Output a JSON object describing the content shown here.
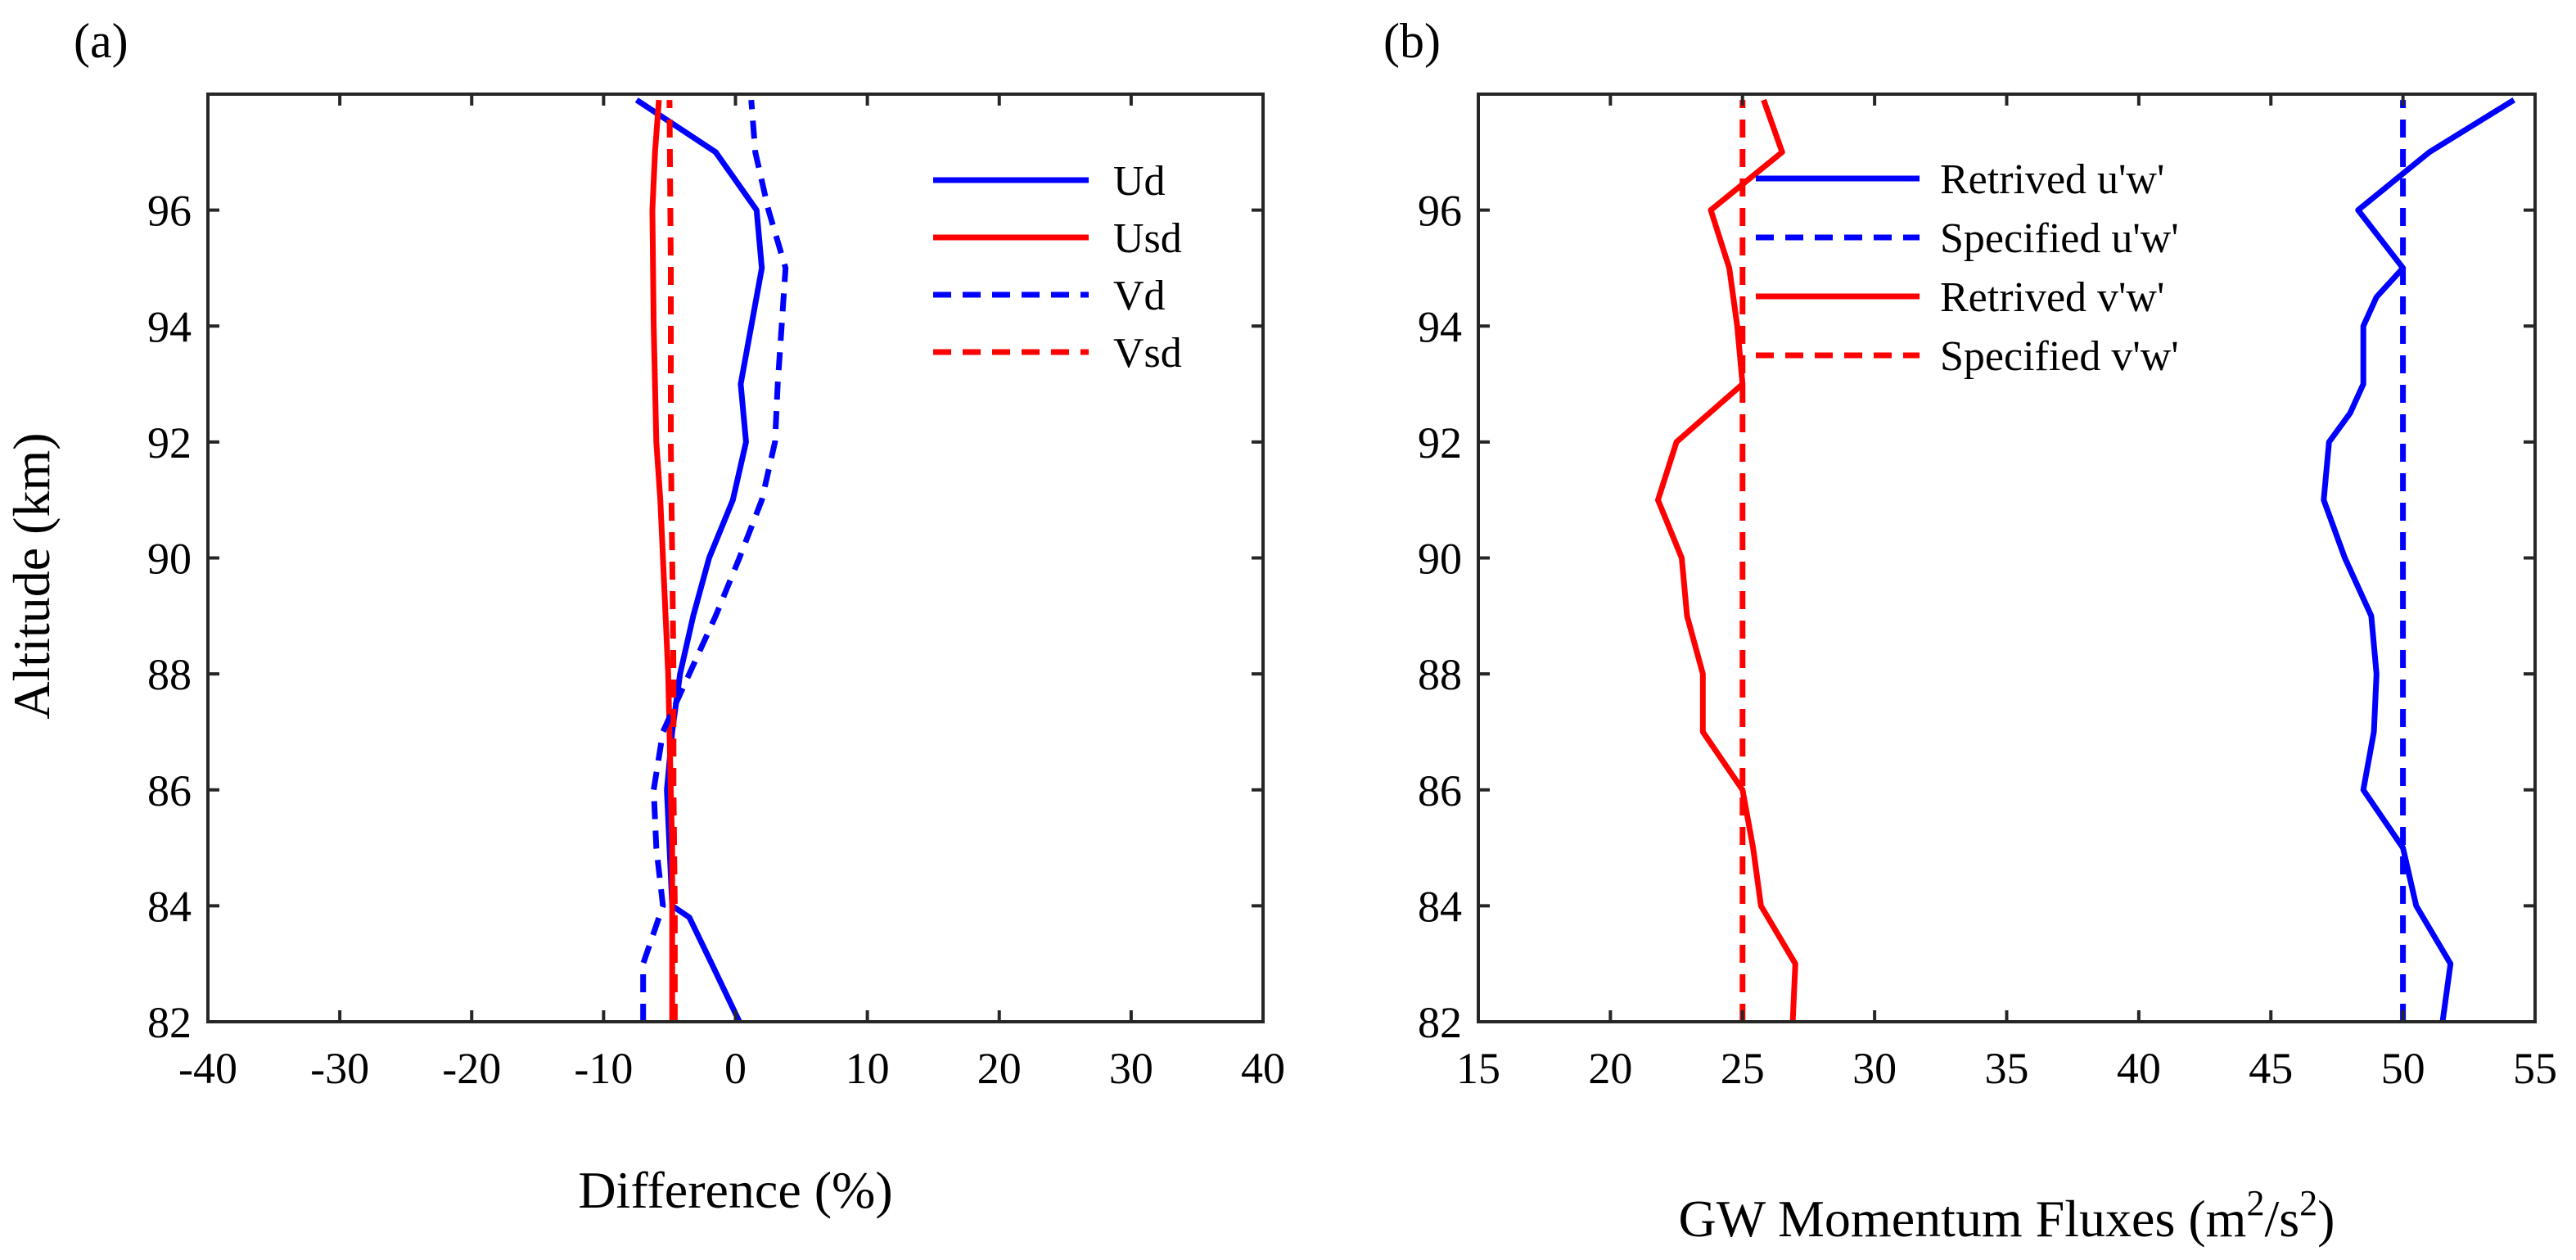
{
  "chart_data": [
    {
      "type": "line",
      "panel_label": "(a)",
      "xlabel": "Difference (%)",
      "ylabel": "Altitude (km)",
      "xlim": [
        -40,
        40
      ],
      "ylim": [
        82,
        98
      ],
      "xticks": [
        -40,
        -30,
        -20,
        -10,
        0,
        10,
        20,
        30,
        40
      ],
      "yticks": [
        82,
        84,
        86,
        88,
        90,
        92,
        94,
        96
      ],
      "legend_position": "top-right",
      "series": [
        {
          "name": "Ud",
          "color": "#0000ff",
          "style": "solid",
          "x": [
            0.3,
            -1.8,
            -3.5,
            -4.8,
            -5.2,
            -4.8,
            -4.2,
            -3.2,
            -2.0,
            -0.2,
            0.8,
            0.4,
            1.2,
            2.0,
            1.6,
            -1.5,
            -7.5
          ],
          "y": [
            82,
            83,
            83.8,
            84,
            86,
            87,
            88,
            89,
            90,
            91,
            92,
            93,
            94,
            95,
            96,
            97,
            97.9
          ]
        },
        {
          "name": "Usd",
          "color": "#ff0000",
          "style": "solid",
          "x": [
            -4.8,
            -4.8,
            -4.8,
            -4.9,
            -5.0,
            -5.1,
            -5.3,
            -5.5,
            -5.7,
            -6.0,
            -6.2,
            -6.3,
            -6.1,
            -5.8
          ],
          "y": [
            82,
            84,
            85,
            86,
            87,
            88,
            89,
            90,
            91,
            92,
            94,
            96,
            97,
            97.9
          ]
        },
        {
          "name": "Vd",
          "color": "#0000ff",
          "style": "dashed",
          "x": [
            -7.0,
            -7.0,
            -5.5,
            -6.0,
            -6.2,
            -5.5,
            -3.5,
            -1.5,
            0.3,
            2.0,
            3.0,
            3.2,
            3.5,
            3.8,
            2.5,
            1.5,
            1.2
          ],
          "y": [
            82,
            83,
            84,
            85,
            86,
            87,
            88,
            89,
            90,
            91,
            92,
            93,
            94,
            95,
            96,
            97,
            97.9
          ]
        },
        {
          "name": "Vsd",
          "color": "#ff0000",
          "style": "dashed",
          "x": [
            -4.6,
            -4.6,
            -4.7,
            -4.7,
            -4.8,
            -4.9,
            -4.9,
            -5.0
          ],
          "y": [
            82,
            84,
            86,
            88,
            90,
            92,
            95,
            97.9
          ]
        }
      ]
    },
    {
      "type": "line",
      "panel_label": "(b)",
      "xlabel": "GW Momentum Fluxes (m",
      "xlabel_sup1": "2",
      "xlabel_mid": "/s",
      "xlabel_sup2": "2",
      "xlabel_end": ")",
      "ylabel": "",
      "xlim": [
        15,
        55
      ],
      "ylim": [
        82,
        98
      ],
      "xticks": [
        15,
        20,
        25,
        30,
        35,
        40,
        45,
        50,
        55
      ],
      "yticks": [
        82,
        84,
        86,
        88,
        90,
        92,
        94,
        96
      ],
      "legend_position": "top-right",
      "series": [
        {
          "name": "Retrived u'w'",
          "color": "#0000ff",
          "style": "solid",
          "x": [
            51.5,
            51.8,
            50.5,
            50.0,
            48.5,
            48.9,
            49.0,
            48.8,
            47.8,
            47.0,
            47.2,
            48.0,
            48.5,
            48.5,
            49.0,
            50.0,
            48.3,
            51.0,
            54.2
          ],
          "y": [
            82,
            83,
            84,
            85,
            86,
            87,
            88,
            89,
            90,
            91,
            92,
            92.5,
            93,
            94,
            94.5,
            95,
            96,
            97,
            97.9
          ]
        },
        {
          "name": "Specified u'w'",
          "color": "#0000ff",
          "style": "dashed",
          "x": [
            50,
            50
          ],
          "y": [
            82,
            97.9
          ]
        },
        {
          "name": "Retrived v'w'",
          "color": "#ff0000",
          "style": "solid",
          "x": [
            26.9,
            27.0,
            25.7,
            25.4,
            25.0,
            23.5,
            23.5,
            22.9,
            22.7,
            21.8,
            22.5,
            25.0,
            24.8,
            24.5,
            23.8,
            26.5,
            25.8
          ],
          "y": [
            82,
            83,
            84,
            85,
            86,
            87,
            88,
            89,
            90,
            91,
            92,
            93,
            94,
            95,
            96,
            97,
            97.9
          ]
        },
        {
          "name": "Specified v'w'",
          "color": "#ff0000",
          "style": "dashed",
          "x": [
            25,
            25
          ],
          "y": [
            82,
            97.9
          ]
        }
      ]
    }
  ]
}
